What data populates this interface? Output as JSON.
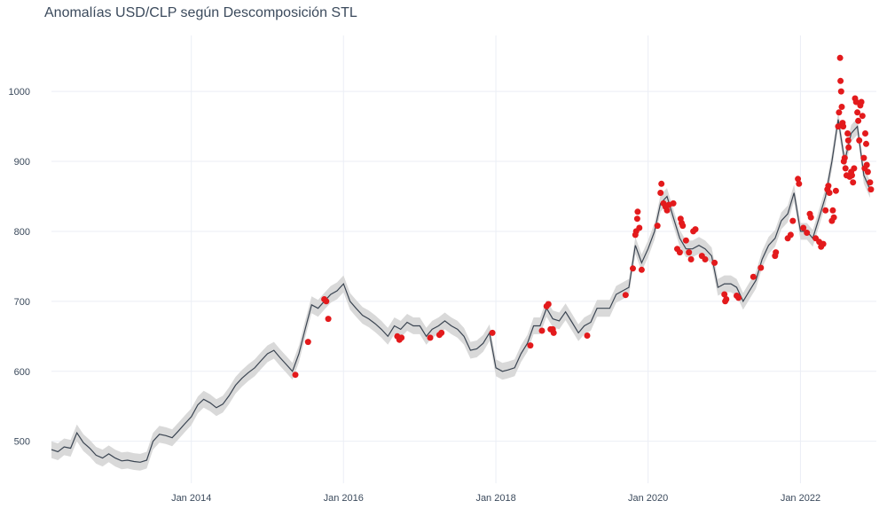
{
  "chart_data": {
    "type": "line",
    "title": "Anomalías USD/CLP según Descomposición STL",
    "xlabel": "",
    "ylabel": "",
    "grid": true,
    "x_range": [
      "2012-03-01",
      "2022-12-31"
    ],
    "ylim": [
      440,
      1080
    ],
    "x_tick_labels": [
      "Jan 2014",
      "Jan 2016",
      "Jan 2018",
      "Jan 2020",
      "Jan 2022"
    ],
    "x_tick_dates": [
      "2014-01-01",
      "2016-01-01",
      "2018-01-01",
      "2020-01-01",
      "2022-01-01"
    ],
    "y_ticks": [
      500,
      600,
      700,
      800,
      900,
      1000
    ],
    "colors": {
      "line": "#3b4552",
      "band": "#d9d9d9",
      "anomaly": "#e31a1c",
      "grid": "#ebeef5"
    },
    "series": [
      {
        "kind": "line",
        "points": [
          [
            "2012-03-01",
            488
          ],
          [
            "2012-04-01",
            485
          ],
          [
            "2012-05-01",
            492
          ],
          [
            "2012-06-01",
            490
          ],
          [
            "2012-07-01",
            512
          ],
          [
            "2012-08-01",
            498
          ],
          [
            "2012-09-01",
            490
          ],
          [
            "2012-10-01",
            480
          ],
          [
            "2012-11-01",
            476
          ],
          [
            "2012-12-01",
            482
          ],
          [
            "2013-01-01",
            476
          ],
          [
            "2013-02-01",
            472
          ],
          [
            "2013-03-01",
            473
          ],
          [
            "2013-04-01",
            471
          ],
          [
            "2013-05-01",
            470
          ],
          [
            "2013-06-01",
            473
          ],
          [
            "2013-07-01",
            500
          ],
          [
            "2013-08-01",
            510
          ],
          [
            "2013-09-01",
            508
          ],
          [
            "2013-10-01",
            505
          ],
          [
            "2013-11-01",
            515
          ],
          [
            "2013-12-01",
            525
          ],
          [
            "2014-01-01",
            535
          ],
          [
            "2014-02-01",
            552
          ],
          [
            "2014-03-01",
            560
          ],
          [
            "2014-04-01",
            555
          ],
          [
            "2014-05-01",
            548
          ],
          [
            "2014-06-01",
            553
          ],
          [
            "2014-07-01",
            565
          ],
          [
            "2014-08-01",
            580
          ],
          [
            "2014-09-01",
            590
          ],
          [
            "2014-10-01",
            598
          ],
          [
            "2014-11-01",
            605
          ],
          [
            "2014-12-01",
            615
          ],
          [
            "2015-01-01",
            625
          ],
          [
            "2015-02-01",
            630
          ],
          [
            "2015-03-01",
            620
          ],
          [
            "2015-04-01",
            610
          ],
          [
            "2015-05-01",
            600
          ],
          [
            "2015-06-01",
            625
          ],
          [
            "2015-07-01",
            660
          ],
          [
            "2015-08-01",
            695
          ],
          [
            "2015-09-01",
            690
          ],
          [
            "2015-10-01",
            700
          ],
          [
            "2015-11-01",
            710
          ],
          [
            "2015-12-01",
            715
          ],
          [
            "2016-01-01",
            725
          ],
          [
            "2016-02-01",
            700
          ],
          [
            "2016-03-01",
            690
          ],
          [
            "2016-04-01",
            680
          ],
          [
            "2016-05-01",
            675
          ],
          [
            "2016-06-01",
            668
          ],
          [
            "2016-07-01",
            660
          ],
          [
            "2016-08-01",
            650
          ],
          [
            "2016-09-01",
            665
          ],
          [
            "2016-10-01",
            660
          ],
          [
            "2016-11-01",
            670
          ],
          [
            "2016-12-01",
            665
          ],
          [
            "2017-01-01",
            665
          ],
          [
            "2017-02-01",
            650
          ],
          [
            "2017-03-01",
            660
          ],
          [
            "2017-04-01",
            665
          ],
          [
            "2017-05-01",
            672
          ],
          [
            "2017-06-01",
            665
          ],
          [
            "2017-07-01",
            660
          ],
          [
            "2017-08-01",
            650
          ],
          [
            "2017-09-01",
            630
          ],
          [
            "2017-10-01",
            632
          ],
          [
            "2017-11-01",
            640
          ],
          [
            "2017-12-01",
            655
          ],
          [
            "2018-01-01",
            605
          ],
          [
            "2018-02-01",
            600
          ],
          [
            "2018-03-01",
            602
          ],
          [
            "2018-04-01",
            605
          ],
          [
            "2018-05-01",
            625
          ],
          [
            "2018-06-01",
            640
          ],
          [
            "2018-07-01",
            665
          ],
          [
            "2018-08-01",
            665
          ],
          [
            "2018-09-01",
            690
          ],
          [
            "2018-10-01",
            675
          ],
          [
            "2018-11-01",
            672
          ],
          [
            "2018-12-01",
            685
          ],
          [
            "2019-01-01",
            670
          ],
          [
            "2019-02-01",
            655
          ],
          [
            "2019-03-01",
            665
          ],
          [
            "2019-04-01",
            670
          ],
          [
            "2019-05-01",
            690
          ],
          [
            "2019-06-01",
            690
          ],
          [
            "2019-07-01",
            690
          ],
          [
            "2019-08-01",
            710
          ],
          [
            "2019-09-01",
            715
          ],
          [
            "2019-10-01",
            720
          ],
          [
            "2019-11-01",
            780
          ],
          [
            "2019-12-01",
            755
          ],
          [
            "2020-01-01",
            775
          ],
          [
            "2020-02-01",
            800
          ],
          [
            "2020-03-01",
            840
          ],
          [
            "2020-04-01",
            850
          ],
          [
            "2020-05-01",
            820
          ],
          [
            "2020-06-01",
            790
          ],
          [
            "2020-07-01",
            775
          ],
          [
            "2020-08-01",
            775
          ],
          [
            "2020-09-01",
            780
          ],
          [
            "2020-10-01",
            775
          ],
          [
            "2020-11-01",
            765
          ],
          [
            "2020-12-01",
            720
          ],
          [
            "2021-01-01",
            725
          ],
          [
            "2021-02-01",
            725
          ],
          [
            "2021-03-01",
            720
          ],
          [
            "2021-04-01",
            700
          ],
          [
            "2021-05-01",
            715
          ],
          [
            "2021-06-01",
            730
          ],
          [
            "2021-07-01",
            760
          ],
          [
            "2021-08-01",
            780
          ],
          [
            "2021-09-01",
            790
          ],
          [
            "2021-10-01",
            815
          ],
          [
            "2021-11-01",
            825
          ],
          [
            "2021-12-01",
            855
          ],
          [
            "2022-01-01",
            800
          ],
          [
            "2022-02-01",
            800
          ],
          [
            "2022-03-01",
            790
          ],
          [
            "2022-04-01",
            820
          ],
          [
            "2022-05-01",
            850
          ],
          [
            "2022-06-01",
            900
          ],
          [
            "2022-07-01",
            960
          ],
          [
            "2022-08-01",
            900
          ],
          [
            "2022-09-01",
            940
          ],
          [
            "2022-10-01",
            950
          ],
          [
            "2022-11-01",
            880
          ],
          [
            "2022-12-01",
            860
          ]
        ]
      },
      {
        "kind": "anomalies",
        "points": [
          [
            "2015-05-15",
            595
          ],
          [
            "2015-07-15",
            642
          ],
          [
            "2015-10-01",
            703
          ],
          [
            "2015-10-10",
            700
          ],
          [
            "2015-10-20",
            675
          ],
          [
            "2016-09-15",
            650
          ],
          [
            "2016-09-25",
            645
          ],
          [
            "2016-10-05",
            648
          ],
          [
            "2017-02-20",
            648
          ],
          [
            "2017-04-05",
            652
          ],
          [
            "2017-04-15",
            655
          ],
          [
            "2017-12-15",
            655
          ],
          [
            "2018-06-15",
            637
          ],
          [
            "2018-08-10",
            658
          ],
          [
            "2018-09-01",
            693
          ],
          [
            "2018-09-10",
            696
          ],
          [
            "2018-09-20",
            660
          ],
          [
            "2018-10-01",
            660
          ],
          [
            "2018-10-05",
            655
          ],
          [
            "2019-03-15",
            651
          ],
          [
            "2019-09-15",
            709
          ],
          [
            "2019-10-20",
            747
          ],
          [
            "2019-11-01",
            795
          ],
          [
            "2019-11-05",
            800
          ],
          [
            "2019-11-10",
            818
          ],
          [
            "2019-11-12",
            828
          ],
          [
            "2019-11-20",
            805
          ],
          [
            "2019-12-01",
            745
          ],
          [
            "2020-02-15",
            808
          ],
          [
            "2020-03-01",
            855
          ],
          [
            "2020-03-05",
            868
          ],
          [
            "2020-03-15",
            840
          ],
          [
            "2020-03-25",
            835
          ],
          [
            "2020-04-01",
            830
          ],
          [
            "2020-04-10",
            838
          ],
          [
            "2020-05-01",
            840
          ],
          [
            "2020-05-20",
            775
          ],
          [
            "2020-06-01",
            770
          ],
          [
            "2020-06-05",
            818
          ],
          [
            "2020-06-10",
            812
          ],
          [
            "2020-06-15",
            808
          ],
          [
            "2020-07-01",
            787
          ],
          [
            "2020-07-15",
            770
          ],
          [
            "2020-07-25",
            760
          ],
          [
            "2020-08-05",
            800
          ],
          [
            "2020-08-15",
            803
          ],
          [
            "2020-09-15",
            765
          ],
          [
            "2020-10-01",
            760
          ],
          [
            "2020-11-15",
            755
          ],
          [
            "2021-01-01",
            710
          ],
          [
            "2021-01-05",
            700
          ],
          [
            "2021-01-10",
            703
          ],
          [
            "2021-03-01",
            708
          ],
          [
            "2021-03-10",
            705
          ],
          [
            "2021-05-20",
            735
          ],
          [
            "2021-06-25",
            748
          ],
          [
            "2021-09-01",
            765
          ],
          [
            "2021-09-05",
            770
          ],
          [
            "2021-11-01",
            790
          ],
          [
            "2021-11-15",
            795
          ],
          [
            "2021-11-25",
            815
          ],
          [
            "2021-12-20",
            875
          ],
          [
            "2021-12-25",
            868
          ],
          [
            "2022-01-15",
            805
          ],
          [
            "2022-02-01",
            798
          ],
          [
            "2022-02-15",
            825
          ],
          [
            "2022-02-20",
            820
          ],
          [
            "2022-03-15",
            790
          ],
          [
            "2022-04-01",
            785
          ],
          [
            "2022-04-10",
            778
          ],
          [
            "2022-04-20",
            782
          ],
          [
            "2022-05-01",
            830
          ],
          [
            "2022-05-10",
            860
          ],
          [
            "2022-05-15",
            865
          ],
          [
            "2022-05-20",
            855
          ],
          [
            "2022-06-01",
            815
          ],
          [
            "2022-06-05",
            830
          ],
          [
            "2022-06-10",
            820
          ],
          [
            "2022-06-20",
            858
          ],
          [
            "2022-07-01",
            950
          ],
          [
            "2022-07-05",
            970
          ],
          [
            "2022-07-10",
            1048
          ],
          [
            "2022-07-12",
            1015
          ],
          [
            "2022-07-15",
            1000
          ],
          [
            "2022-07-18",
            978
          ],
          [
            "2022-07-22",
            955
          ],
          [
            "2022-07-25",
            950
          ],
          [
            "2022-07-28",
            900
          ],
          [
            "2022-08-01",
            905
          ],
          [
            "2022-08-05",
            890
          ],
          [
            "2022-08-10",
            880
          ],
          [
            "2022-08-15",
            940
          ],
          [
            "2022-08-18",
            930
          ],
          [
            "2022-08-20",
            920
          ],
          [
            "2022-08-25",
            878
          ],
          [
            "2022-09-01",
            885
          ],
          [
            "2022-09-05",
            880
          ],
          [
            "2022-09-10",
            870
          ],
          [
            "2022-09-15",
            890
          ],
          [
            "2022-09-20",
            990
          ],
          [
            "2022-09-25",
            985
          ],
          [
            "2022-10-01",
            970
          ],
          [
            "2022-10-05",
            958
          ],
          [
            "2022-10-10",
            930
          ],
          [
            "2022-10-15",
            980
          ],
          [
            "2022-10-20",
            985
          ],
          [
            "2022-10-25",
            965
          ],
          [
            "2022-11-01",
            905
          ],
          [
            "2022-11-05",
            890
          ],
          [
            "2022-11-08",
            940
          ],
          [
            "2022-11-12",
            925
          ],
          [
            "2022-11-15",
            895
          ],
          [
            "2022-11-20",
            885
          ],
          [
            "2022-12-01",
            870
          ],
          [
            "2022-12-05",
            860
          ]
        ]
      }
    ]
  }
}
